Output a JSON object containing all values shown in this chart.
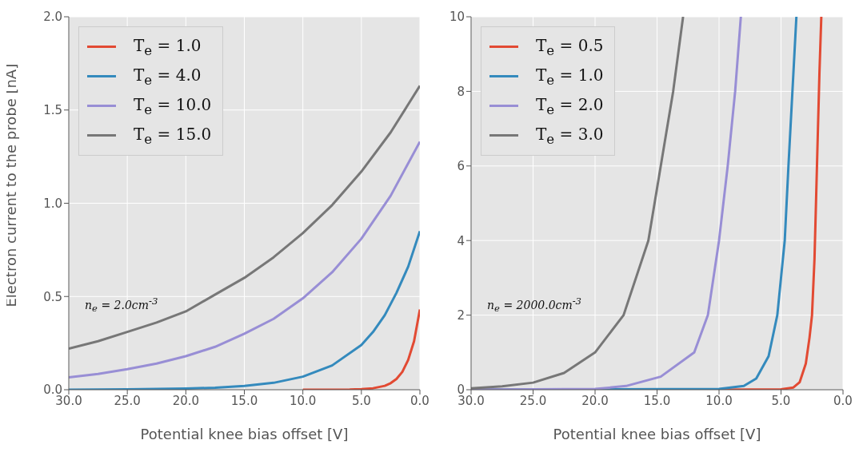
{
  "chart_data": [
    {
      "type": "line",
      "xlabel": "Potential knee bias offset [V]",
      "ylabel": "Electron current to the probe [nA]",
      "xlim": [
        30,
        0
      ],
      "ylim": [
        0,
        2
      ],
      "xticks": [
        {
          "value": 30,
          "label": "30.0"
        },
        {
          "value": 25,
          "label": "25.0"
        },
        {
          "value": 20,
          "label": "20.0"
        },
        {
          "value": 15,
          "label": "15.0"
        },
        {
          "value": 10,
          "label": "10.0"
        },
        {
          "value": 5,
          "label": "5.0"
        },
        {
          "value": 0,
          "label": "0.0"
        }
      ],
      "yticks": [
        {
          "value": 0,
          "label": "0.0"
        },
        {
          "value": 0.5,
          "label": "0.5"
        },
        {
          "value": 1,
          "label": "1.0"
        },
        {
          "value": 1.5,
          "label": "1.5"
        },
        {
          "value": 2,
          "label": "2.0"
        }
      ],
      "grid": true,
      "legend": "top left",
      "marker": "none",
      "line_style": "solid",
      "annotations": [
        "n$_{e}$ = 2.0cm$^{-3}$"
      ],
      "series": [
        {
          "name": "T$_{e}$ = 1.0",
          "color": "#e24a33",
          "x": [
            10,
            6,
            5,
            4,
            3,
            2.5,
            2,
            1.5,
            1,
            0.5,
            0
          ],
          "values": [
            0,
            0.001,
            0.003,
            0.008,
            0.021,
            0.035,
            0.058,
            0.096,
            0.16,
            0.26,
            0.43
          ]
        },
        {
          "name": "T$_{e}$ = 4.0",
          "color": "#348abd",
          "x": [
            30,
            25,
            20,
            17.5,
            15,
            12.5,
            10,
            7.5,
            5,
            4,
            3,
            2,
            1,
            0
          ],
          "values": [
            0,
            0.002,
            0.006,
            0.011,
            0.02,
            0.037,
            0.07,
            0.13,
            0.24,
            0.31,
            0.4,
            0.52,
            0.66,
            0.85
          ]
        },
        {
          "name": "T$_{e}$ = 10.0",
          "color": "#988ed5",
          "x": [
            30,
            27.5,
            25,
            22.5,
            20,
            17.5,
            15,
            12.5,
            10,
            7.5,
            5,
            2.5,
            0
          ],
          "values": [
            0.066,
            0.085,
            0.11,
            0.14,
            0.18,
            0.23,
            0.3,
            0.38,
            0.49,
            0.63,
            0.81,
            1.04,
            1.33
          ]
        },
        {
          "name": "T$_{e}$ = 15.0",
          "color": "#777777",
          "x": [
            30,
            27.5,
            25,
            22.5,
            20,
            17.5,
            15,
            12.5,
            10,
            7.5,
            5,
            2.5,
            0
          ],
          "values": [
            0.22,
            0.26,
            0.31,
            0.36,
            0.42,
            0.51,
            0.6,
            0.71,
            0.84,
            0.99,
            1.17,
            1.38,
            1.63
          ]
        }
      ]
    },
    {
      "type": "line",
      "xlabel": "Potential knee bias offset [V]",
      "xlim": [
        30,
        0
      ],
      "ylim": [
        0,
        10
      ],
      "xticks": [
        {
          "value": 30,
          "label": "30.0"
        },
        {
          "value": 25,
          "label": "25.0"
        },
        {
          "value": 20,
          "label": "20.0"
        },
        {
          "value": 15,
          "label": "15.0"
        },
        {
          "value": 10,
          "label": "10.0"
        },
        {
          "value": 5,
          "label": "5.0"
        },
        {
          "value": 0,
          "label": "0.0"
        }
      ],
      "yticks": [
        0,
        2,
        4,
        6,
        8,
        10
      ],
      "grid": true,
      "legend": "top left",
      "marker": "none",
      "line_style": "solid",
      "annotations": [
        "n$_{e}$ = 2000.0cm$^{-3}$"
      ],
      "series": [
        {
          "name": "T$_{e}$ = 0.5",
          "color": "#e24a33",
          "x": [
            30,
            10,
            5,
            4,
            3.5,
            3,
            2.7,
            2.5,
            2.3,
            2.1,
            1.9,
            1.75
          ],
          "values": [
            0,
            0,
            0.01,
            0.06,
            0.2,
            0.7,
            1.4,
            2,
            3.5,
            6,
            8.5,
            10
          ]
        },
        {
          "name": "T$_{e}$ = 1.0",
          "color": "#348abd",
          "x": [
            30,
            10,
            8,
            7,
            6,
            5.3,
            4.7,
            4.4,
            4,
            3.76
          ],
          "values": [
            0,
            0.02,
            0.1,
            0.3,
            0.9,
            2,
            4,
            6,
            8.5,
            10
          ]
        },
        {
          "name": "T$_{e}$ = 2.0",
          "color": "#988ed5",
          "x": [
            30,
            20,
            17.5,
            14.7,
            12,
            10.9,
            10,
            9.3,
            8.7,
            8.24
          ],
          "values": [
            0,
            0.02,
            0.1,
            0.35,
            1,
            2,
            4,
            6,
            8,
            10
          ]
        },
        {
          "name": "T$_{e}$ = 3.0",
          "color": "#777777",
          "x": [
            30,
            27.5,
            25,
            22.5,
            20,
            17.7,
            15.7,
            14.7,
            13.7,
            12.9
          ],
          "values": [
            0.04,
            0.09,
            0.19,
            0.45,
            1,
            2,
            4,
            6,
            8,
            10
          ]
        }
      ]
    }
  ]
}
